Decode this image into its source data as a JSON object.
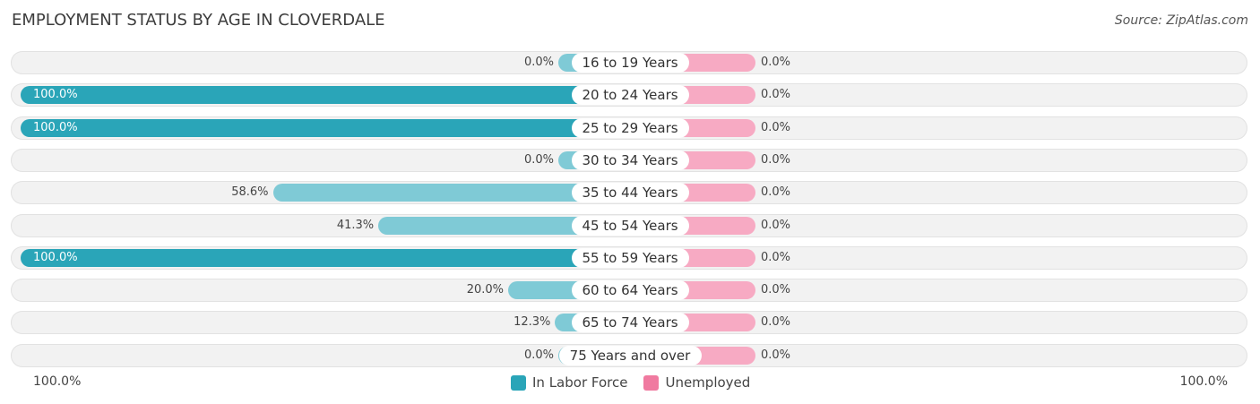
{
  "title": "EMPLOYMENT STATUS BY AGE IN CLOVERDALE",
  "source": "Source: ZipAtlas.com",
  "colors": {
    "labor_force": "#2aa5b8",
    "labor_force_light": "#7fcad6",
    "unemployed": "#f07aa0",
    "unemployed_light": "#f7aac3"
  },
  "axis": {
    "left_label": "100.0%",
    "right_label": "100.0%"
  },
  "legend": {
    "labor_force": "In Labor Force",
    "unemployed": "Unemployed"
  },
  "chart_data": {
    "type": "bar",
    "orientation": "horizontal-diverging",
    "categories": [
      "16 to 19 Years",
      "20 to 24 Years",
      "25 to 29 Years",
      "30 to 34 Years",
      "35 to 44 Years",
      "45 to 54 Years",
      "55 to 59 Years",
      "60 to 64 Years",
      "65 to 74 Years",
      "75 Years and over"
    ],
    "series": [
      {
        "name": "In Labor Force",
        "values": [
          0.0,
          100.0,
          100.0,
          0.0,
          58.6,
          41.3,
          100.0,
          20.0,
          12.3,
          0.0
        ],
        "labels": [
          "0.0%",
          "100.0%",
          "100.0%",
          "0.0%",
          "58.6%",
          "41.3%",
          "100.0%",
          "20.0%",
          "12.3%",
          "0.0%"
        ]
      },
      {
        "name": "Unemployed",
        "values": [
          0.0,
          0.0,
          0.0,
          0.0,
          0.0,
          0.0,
          0.0,
          0.0,
          0.0,
          0.0
        ],
        "labels": [
          "0.0%",
          "0.0%",
          "0.0%",
          "0.0%",
          "0.0%",
          "0.0%",
          "0.0%",
          "0.0%",
          "0.0%",
          "0.0%"
        ]
      }
    ],
    "xlim": [
      0,
      100
    ],
    "legend_position": "bottom-center"
  }
}
